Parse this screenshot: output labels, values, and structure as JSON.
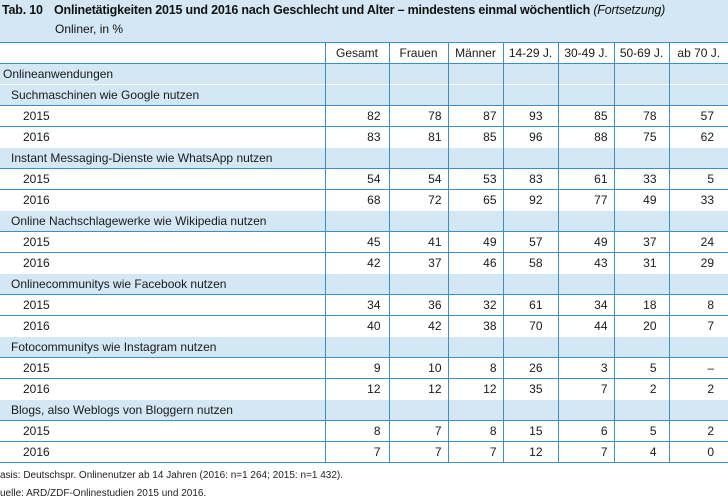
{
  "header": {
    "tab_no": "Tab. 10",
    "title": "Onlinetätigkeiten 2015 und 2016 nach Geschlecht und Alter – mindestens einmal wöchentlich",
    "title_suffix": "(Fortsetzung)",
    "unit": "Onliner, in %"
  },
  "columns": [
    "Gesamt",
    "Frauen",
    "Männer",
    "14-29 J.",
    "30-49 J.",
    "50-69 J.",
    "ab 70 J."
  ],
  "section_label": "Onlineanwendungen",
  "groups": [
    {
      "label": "Suchmaschinen wie Google nutzen",
      "rows": [
        {
          "year": "2015",
          "values": [
            "82",
            "78",
            "87",
            "93",
            "85",
            "78",
            "57"
          ]
        },
        {
          "year": "2016",
          "values": [
            "83",
            "81",
            "85",
            "96",
            "88",
            "75",
            "62"
          ]
        }
      ]
    },
    {
      "label": "Instant Messaging-Dienste wie WhatsApp nutzen",
      "rows": [
        {
          "year": "2015",
          "values": [
            "54",
            "54",
            "53",
            "83",
            "61",
            "33",
            "5"
          ]
        },
        {
          "year": "2016",
          "values": [
            "68",
            "72",
            "65",
            "92",
            "77",
            "49",
            "33"
          ]
        }
      ]
    },
    {
      "label": "Online Nachschlagewerke wie Wikipedia nutzen",
      "rows": [
        {
          "year": "2015",
          "values": [
            "45",
            "41",
            "49",
            "57",
            "49",
            "37",
            "24"
          ]
        },
        {
          "year": "2016",
          "values": [
            "42",
            "37",
            "46",
            "58",
            "43",
            "31",
            "29"
          ]
        }
      ]
    },
    {
      "label": "Onlinecommunitys wie Facebook nutzen",
      "rows": [
        {
          "year": "2015",
          "values": [
            "34",
            "36",
            "32",
            "61",
            "34",
            "18",
            "8"
          ]
        },
        {
          "year": "2016",
          "values": [
            "40",
            "42",
            "38",
            "70",
            "44",
            "20",
            "7"
          ]
        }
      ]
    },
    {
      "label": "Fotocommunitys wie Instagram nutzen",
      "rows": [
        {
          "year": "2015",
          "values": [
            "9",
            "10",
            "8",
            "26",
            "3",
            "5",
            "–"
          ]
        },
        {
          "year": "2016",
          "values": [
            "12",
            "12",
            "12",
            "35",
            "7",
            "2",
            "2"
          ]
        }
      ]
    },
    {
      "label": "Blogs, also Weblogs von Bloggern nutzen",
      "rows": [
        {
          "year": "2015",
          "values": [
            "8",
            "7",
            "8",
            "15",
            "6",
            "5",
            "2"
          ]
        },
        {
          "year": "2016",
          "values": [
            "7",
            "7",
            "7",
            "12",
            "7",
            "4",
            "0"
          ]
        }
      ]
    }
  ],
  "footnotes": {
    "basis": "asis: Deutschspr. Onlinenutzer ab 14 Jahren (2016: n=1 264; 2015: n=1 432).",
    "source": "uelle: ARD/ZDF-Onlinestudien 2015 und 2016."
  }
}
